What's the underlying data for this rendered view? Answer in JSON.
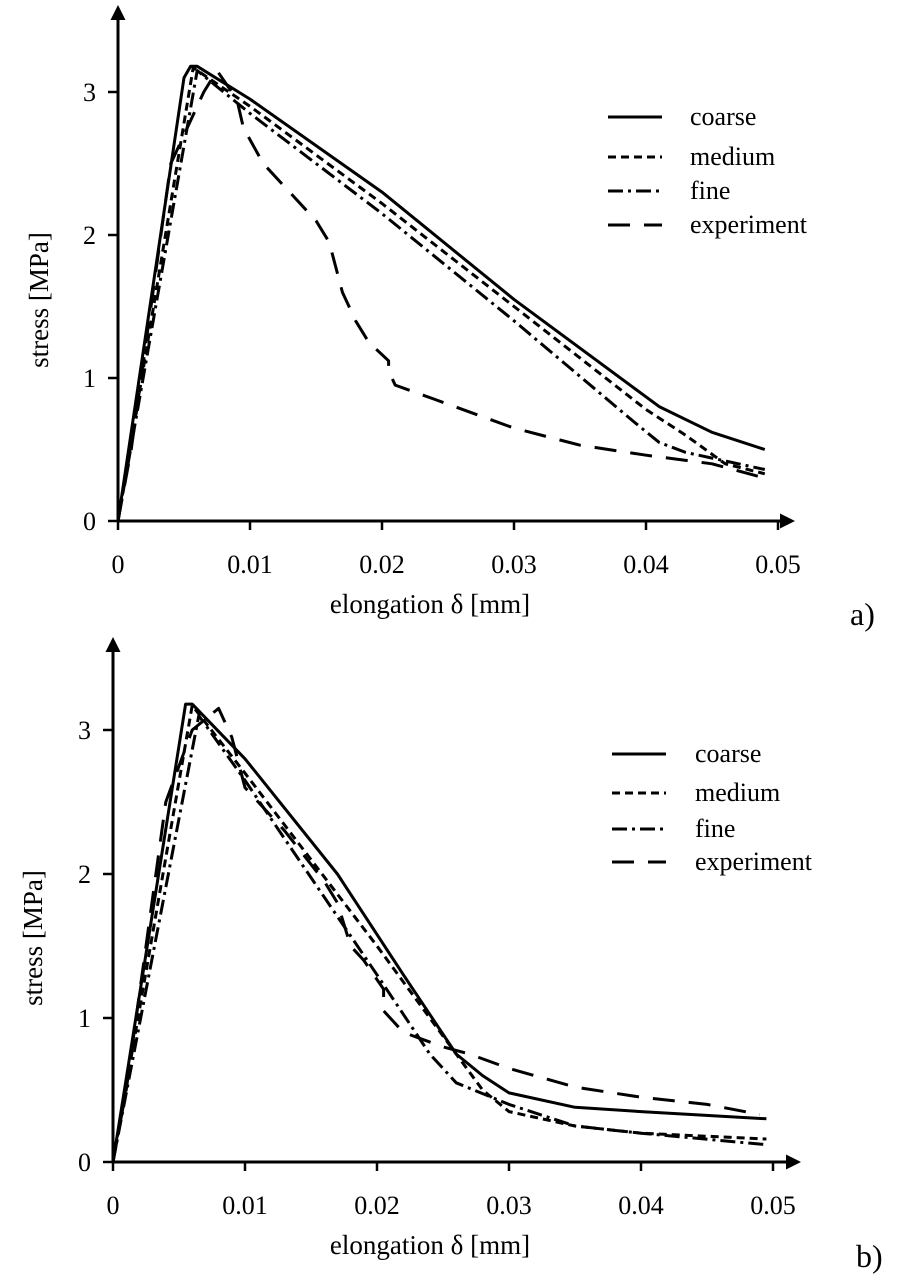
{
  "chart_data": [
    {
      "type": "line",
      "panel_label": "a)",
      "xlabel": "elongation δ [mm]",
      "ylabel": "stress [MPa]",
      "xlim": [
        0,
        0.05
      ],
      "ylim": [
        0,
        3.4
      ],
      "xticks": [
        "0",
        "0.01",
        "0.02",
        "0.03",
        "0.04",
        "0.05"
      ],
      "xtick_values": [
        0,
        0.01,
        0.02,
        0.03,
        0.04,
        0.05
      ],
      "yticks": [
        "0",
        "1",
        "2",
        "3"
      ],
      "ytick_values": [
        0,
        1,
        2,
        3
      ],
      "legend_position": "top-right",
      "grid": false,
      "series": [
        {
          "name": "coarse",
          "style": "solid",
          "x": [
            0,
            0.005,
            0.0055,
            0.006,
            0.01,
            0.02,
            0.03,
            0.041,
            0.045,
            0.049
          ],
          "y": [
            0,
            3.1,
            3.18,
            3.18,
            2.95,
            2.3,
            1.55,
            0.8,
            0.62,
            0.5
          ]
        },
        {
          "name": "medium",
          "style": "dashed",
          "x": [
            0,
            0.0057,
            0.01,
            0.02,
            0.03,
            0.04,
            0.043,
            0.046,
            0.049
          ],
          "y": [
            0,
            3.17,
            2.9,
            2.22,
            1.5,
            0.78,
            0.6,
            0.4,
            0.33
          ]
        },
        {
          "name": "fine",
          "style": "dashdot",
          "x": [
            0,
            0.006,
            0.01,
            0.02,
            0.03,
            0.039,
            0.041,
            0.043,
            0.049
          ],
          "y": [
            0,
            3.15,
            2.85,
            2.15,
            1.4,
            0.7,
            0.55,
            0.48,
            0.36
          ]
        },
        {
          "name": "experiment",
          "style": "longdash",
          "x": [
            0,
            0.001,
            0.004,
            0.0065,
            0.0075,
            0.009,
            0.0095,
            0.011,
            0.013,
            0.015,
            0.016,
            0.017,
            0.018,
            0.019,
            0.0205,
            0.0205,
            0.021,
            0.024,
            0.03,
            0.035,
            0.04,
            0.045,
            0.049
          ],
          "y": [
            0,
            0.5,
            2.5,
            3.0,
            3.15,
            2.95,
            2.75,
            2.5,
            2.3,
            2.1,
            1.95,
            1.6,
            1.4,
            1.25,
            1.12,
            1.05,
            0.95,
            0.85,
            0.65,
            0.53,
            0.46,
            0.4,
            0.3
          ]
        }
      ]
    },
    {
      "type": "line",
      "panel_label": "b)",
      "xlabel": "elongation δ [mm]",
      "ylabel": "stress [MPa]",
      "xlim": [
        0,
        0.05
      ],
      "ylim": [
        0,
        3.4
      ],
      "xticks": [
        "0",
        "0.01",
        "0.02",
        "0.03",
        "0.04",
        "0.05"
      ],
      "xtick_values": [
        0,
        0.01,
        0.02,
        0.03,
        0.04,
        0.05
      ],
      "yticks": [
        "0",
        "1",
        "2",
        "3"
      ],
      "ytick_values": [
        0,
        1,
        2,
        3
      ],
      "legend_position": "top-right",
      "grid": false,
      "series": [
        {
          "name": "coarse",
          "style": "solid",
          "x": [
            0,
            0.0055,
            0.006,
            0.01,
            0.017,
            0.022,
            0.026,
            0.028,
            0.03,
            0.035,
            0.04,
            0.0495
          ],
          "y": [
            0,
            3.18,
            3.18,
            2.8,
            2.0,
            1.3,
            0.75,
            0.6,
            0.48,
            0.38,
            0.35,
            0.3
          ]
        },
        {
          "name": "medium",
          "style": "dashed",
          "x": [
            0,
            0.006,
            0.01,
            0.02,
            0.026,
            0.028,
            0.03,
            0.035,
            0.04,
            0.0495
          ],
          "y": [
            0,
            3.17,
            2.7,
            1.5,
            0.75,
            0.5,
            0.35,
            0.25,
            0.2,
            0.16
          ]
        },
        {
          "name": "fine",
          "style": "dashdot",
          "x": [
            0,
            0.0065,
            0.01,
            0.02,
            0.024,
            0.026,
            0.03,
            0.035,
            0.04,
            0.0495
          ],
          "y": [
            0,
            3.1,
            2.65,
            1.3,
            0.75,
            0.55,
            0.4,
            0.25,
            0.2,
            0.12
          ]
        },
        {
          "name": "experiment",
          "style": "longdash",
          "x": [
            0,
            0.001,
            0.004,
            0.006,
            0.008,
            0.009,
            0.01,
            0.013,
            0.016,
            0.017,
            0.018,
            0.019,
            0.0205,
            0.0205,
            0.022,
            0.025,
            0.027,
            0.03,
            0.035,
            0.04,
            0.045,
            0.049
          ],
          "y": [
            0,
            0.5,
            2.5,
            3.0,
            3.15,
            2.95,
            2.6,
            2.3,
            1.95,
            1.8,
            1.5,
            1.4,
            1.2,
            1.05,
            0.9,
            0.8,
            0.75,
            0.65,
            0.52,
            0.45,
            0.4,
            0.33
          ]
        }
      ]
    }
  ]
}
